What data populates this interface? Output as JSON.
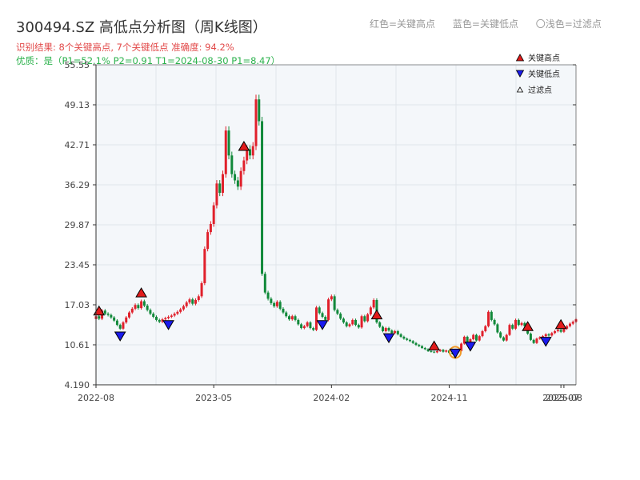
{
  "header": {
    "title": "300494.SZ 高低点分析图（周K线图）",
    "result_line": "识别结果: 8个关键高点, 7个关键低点  准确度: 94.2%",
    "quality_line": "优质：是（P1=52.1%  P2=0.91  T1=2024-08-30 P1=8.47）",
    "legend_red": "红色=关键高点",
    "legend_blue": "蓝色=关键低点",
    "legend_light": "〇浅色=过滤点"
  },
  "colors": {
    "up": "#e0202b",
    "down": "#11893a",
    "high_marker": "#e11b1b",
    "low_marker": "#1a1aee",
    "filtered_ring": "#f09a2a",
    "plot_bg": "#f4f7fa",
    "grid": "#e0e4ea"
  },
  "chart_data": {
    "type": "candlestick",
    "title": "300494.SZ 高低点分析图（周K线图）",
    "y_ticks": [
      4.19,
      10.61,
      17.03,
      23.45,
      29.87,
      36.29,
      42.71,
      49.13,
      55.55
    ],
    "y_tick_labels": [
      "4.190",
      "10.61",
      "17.03",
      "23.45",
      "29.87",
      "36.29",
      "42.71",
      "49.13",
      "55.55"
    ],
    "ylim": [
      4.19,
      55.55
    ],
    "x_ticks": [
      "2022-08",
      "2023-05",
      "2024-02",
      "2024-11",
      "2025-07",
      "2025-08"
    ],
    "x_tick_index": [
      0,
      39,
      78,
      117,
      154,
      155
    ],
    "legend": [
      {
        "name": "关键高点",
        "symbol": "triangle-up",
        "color": "#e11b1b"
      },
      {
        "name": "关键低点",
        "symbol": "triangle-down",
        "color": "#1a1aee"
      },
      {
        "name": "过滤点",
        "symbol": "triangle-up-small",
        "color": "#ffffff"
      }
    ],
    "close": [
      15.2,
      14.8,
      16.1,
      15.6,
      15.4,
      15.0,
      14.5,
      13.8,
      13.2,
      14.2,
      15.0,
      15.8,
      16.4,
      17.0,
      16.5,
      17.6,
      16.9,
      16.2,
      15.6,
      15.1,
      14.6,
      14.3,
      14.7,
      14.9,
      15.1,
      15.3,
      15.6,
      15.9,
      16.3,
      16.8,
      17.4,
      17.9,
      17.2,
      17.8,
      18.4,
      20.5,
      26.0,
      28.7,
      30.0,
      33.0,
      36.5,
      35.0,
      38.0,
      45.0,
      41.0,
      38.0,
      37.0,
      36.0,
      38.5,
      40.2,
      42.0,
      41.0,
      42.5,
      50.0,
      46.5,
      22.0,
      19.0,
      18.0,
      17.3,
      16.8,
      17.5,
      16.4,
      15.8,
      15.2,
      14.7,
      15.2,
      14.6,
      13.9,
      13.3,
      13.6,
      14.2,
      13.3,
      13.0,
      16.6,
      15.7,
      15.1,
      14.6,
      17.9,
      18.4,
      16.2,
      15.6,
      14.8,
      14.2,
      13.6,
      13.9,
      14.6,
      13.8,
      13.4,
      15.2,
      14.4,
      15.5,
      16.6,
      17.8,
      14.2,
      13.5,
      12.8,
      13.3,
      12.9,
      12.5,
      12.8,
      12.3,
      11.9,
      11.6,
      11.4,
      11.2,
      10.9,
      10.6,
      10.4,
      10.1,
      9.9,
      9.6,
      9.5,
      9.4,
      9.6,
      9.8,
      9.5,
      9.7,
      9.3,
      9.2,
      9.4,
      9.6,
      10.8,
      11.9,
      10.9,
      11.5,
      12.2,
      11.3,
      12.0,
      12.8,
      13.6,
      15.9,
      14.6,
      13.9,
      12.6,
      11.8,
      11.3,
      12.2,
      13.8,
      13.2,
      14.6,
      13.8,
      14.1,
      13.6,
      12.4,
      11.4,
      10.9,
      11.6,
      11.8,
      12.0,
      12.3,
      12.1,
      12.5,
      12.8,
      13.0,
      12.7,
      13.2,
      13.6,
      14.0,
      14.3,
      14.7
    ]
  }
}
